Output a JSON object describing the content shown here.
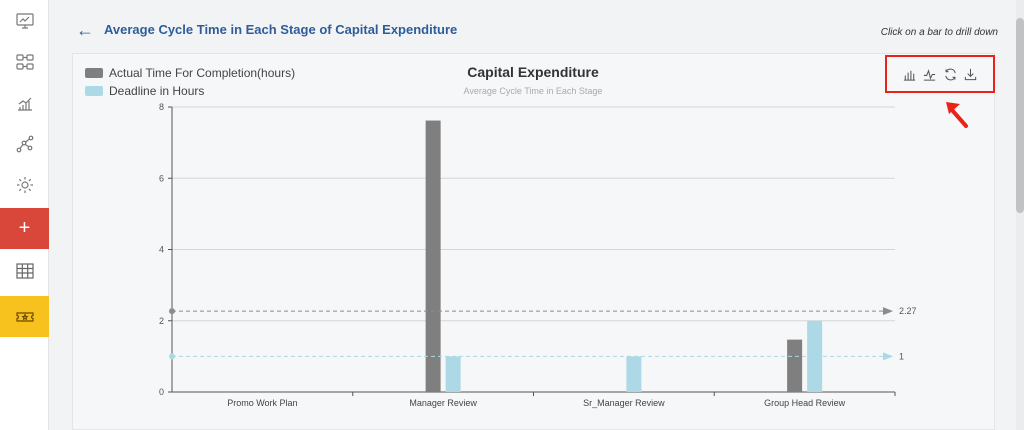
{
  "page": {
    "title": "Average Cycle Time in Each Stage of Capital Expenditure",
    "hint": "Click on a bar to drill down"
  },
  "sidebar": {
    "items": [
      {
        "name": "dashboard-icon"
      },
      {
        "name": "workflow-icon"
      },
      {
        "name": "analytics-icon"
      },
      {
        "name": "process-graph-icon"
      },
      {
        "name": "gear-icon"
      },
      {
        "name": "plus-icon",
        "label": "+"
      },
      {
        "name": "table-icon"
      },
      {
        "name": "ticket-icon"
      }
    ],
    "colors": {
      "add": "#d9473b",
      "ticket": "#f7c21d"
    }
  },
  "toolbox": {
    "items": [
      "bar-chart-icon",
      "line-chart-icon",
      "refresh-icon",
      "download-icon"
    ],
    "highlight_color": "#e8231a"
  },
  "chart_data": {
    "type": "bar",
    "title": "Capital Expenditure",
    "subtitle": "Average Cycle Time in Each Stage",
    "categories": [
      "Promo Work Plan",
      "Manager Review",
      "Sr_Manager Review",
      "Group Head Review"
    ],
    "series": [
      {
        "name": "Actual Time For Completion(hours)",
        "color": "#7f7f7f",
        "values": [
          0,
          7.62,
          0,
          1.47
        ]
      },
      {
        "name": "Deadline in Hours",
        "color": "#add8e6",
        "values": [
          0,
          1,
          1,
          2
        ]
      }
    ],
    "ylim": [
      0,
      8
    ],
    "yticks": [
      0,
      2,
      4,
      6,
      8
    ],
    "mark_lines": [
      {
        "value": 2.27,
        "label": "2.27",
        "color": "#8c8c8c"
      },
      {
        "value": 1,
        "label": "1",
        "color": "#add8e6"
      }
    ],
    "legend_position": "top-left",
    "grid": true
  }
}
